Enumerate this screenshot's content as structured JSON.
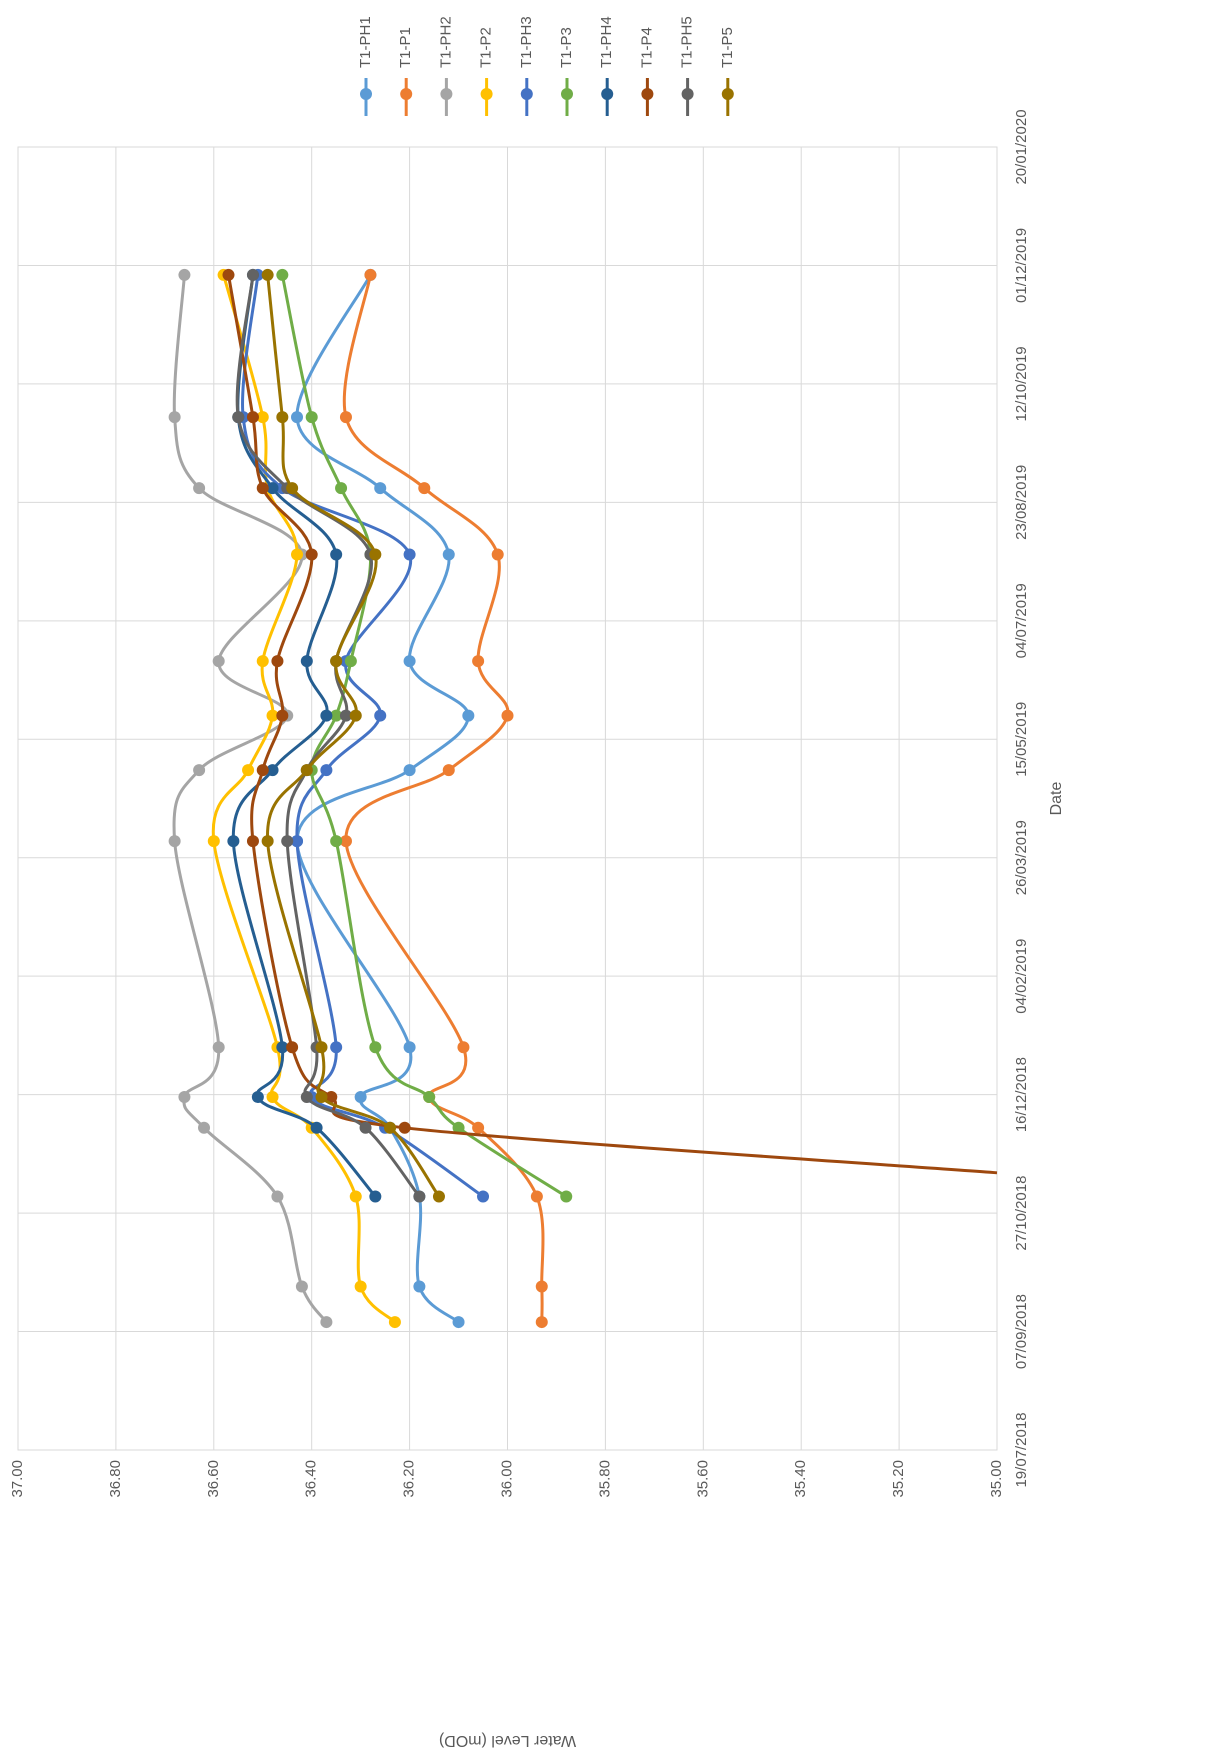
{
  "chart_data": {
    "type": "line",
    "xlabel": "Date",
    "ylabel": "Water Level (mOD)",
    "ylim": [
      35.0,
      37.0
    ],
    "y_ticks": [
      "35.00",
      "35.20",
      "35.40",
      "35.60",
      "35.80",
      "36.00",
      "36.20",
      "36.40",
      "36.60",
      "36.80",
      "37.00"
    ],
    "y_tick_values": [
      35.0,
      35.2,
      35.4,
      35.6,
      35.8,
      36.0,
      36.2,
      36.4,
      36.6,
      36.8,
      37.0
    ],
    "x_ticks": [
      "19/07/2018",
      "07/09/2018",
      "27/10/2018",
      "16/12/2018",
      "04/02/2019",
      "26/03/2019",
      "15/05/2019",
      "04/07/2019",
      "23/08/2019",
      "12/10/2019",
      "01/12/2019",
      "20/01/2020"
    ],
    "x_range": [
      "19/07/2018",
      "20/01/2020"
    ],
    "grid": true,
    "legend_position": "top",
    "orientation": "rotated-90-clockwise",
    "series": [
      {
        "name": "T1-PH1",
        "color": "#5B9BD5",
        "x": [
          "11/09/2018",
          "26/09/2018",
          "03/11/2018",
          "02/12/2018",
          "15/12/2018",
          "05/01/2019",
          "02/04/2019",
          "02/05/2019",
          "25/05/2019",
          "17/06/2019",
          "01/08/2019",
          "29/08/2019",
          "28/09/2019",
          "27/11/2019"
        ],
        "y": [
          36.1,
          36.18,
          36.18,
          36.24,
          36.3,
          36.2,
          36.43,
          36.2,
          36.08,
          36.2,
          36.12,
          36.26,
          36.43,
          36.28
        ]
      },
      {
        "name": "T1-P1",
        "color": "#ED7D31",
        "x": [
          "11/09/2018",
          "26/09/2018",
          "03/11/2018",
          "02/12/2018",
          "15/12/2018",
          "05/01/2019",
          "02/04/2019",
          "02/05/2019",
          "25/05/2019",
          "17/06/2019",
          "01/08/2019",
          "29/08/2019",
          "28/09/2019",
          "27/11/2019"
        ],
        "y": [
          35.93,
          35.93,
          35.94,
          36.06,
          36.16,
          36.09,
          36.33,
          36.12,
          36.0,
          36.06,
          36.02,
          36.17,
          36.33,
          36.28
        ]
      },
      {
        "name": "T1-PH2",
        "color": "#A5A5A5",
        "x": [
          "11/09/2018",
          "26/09/2018",
          "03/11/2018",
          "02/12/2018",
          "15/12/2018",
          "05/01/2019",
          "02/04/2019",
          "02/05/2019",
          "25/05/2019",
          "17/06/2019",
          "01/08/2019",
          "29/08/2019",
          "28/09/2019",
          "27/11/2019"
        ],
        "y": [
          36.37,
          36.42,
          36.47,
          36.62,
          36.66,
          36.59,
          36.68,
          36.63,
          36.45,
          36.59,
          36.42,
          36.63,
          36.68,
          36.66
        ]
      },
      {
        "name": "T1-P2",
        "color": "#FFC000",
        "x": [
          "11/09/2018",
          "26/09/2018",
          "03/11/2018",
          "02/12/2018",
          "15/12/2018",
          "05/01/2019",
          "02/04/2019",
          "02/05/2019",
          "25/05/2019",
          "17/06/2019",
          "01/08/2019",
          "29/08/2019",
          "28/09/2019",
          "27/11/2019"
        ],
        "y": [
          36.23,
          36.3,
          36.31,
          36.4,
          36.48,
          36.47,
          36.6,
          36.53,
          36.48,
          36.5,
          36.43,
          36.49,
          36.5,
          36.58
        ]
      },
      {
        "name": "T1-PH3",
        "color": "#4472C4",
        "x": [
          "03/11/2018",
          "02/12/2018",
          "15/12/2018",
          "05/01/2019",
          "02/04/2019",
          "02/05/2019",
          "25/05/2019",
          "17/06/2019",
          "01/08/2019",
          "29/08/2019",
          "28/09/2019",
          "27/11/2019"
        ],
        "y": [
          36.05,
          36.25,
          36.4,
          36.35,
          36.43,
          36.37,
          36.26,
          36.33,
          36.2,
          36.46,
          36.54,
          36.51
        ]
      },
      {
        "name": "T1-P3",
        "color": "#70AD47",
        "x": [
          "03/11/2018",
          "02/12/2018",
          "15/12/2018",
          "05/01/2019",
          "02/04/2019",
          "02/05/2019",
          "25/05/2019",
          "17/06/2019",
          "01/08/2019",
          "29/08/2019",
          "28/09/2019",
          "27/11/2019"
        ],
        "y": [
          35.88,
          36.1,
          36.16,
          36.27,
          36.35,
          36.4,
          36.35,
          36.32,
          36.28,
          36.34,
          36.4,
          36.46
        ]
      },
      {
        "name": "T1-PH4",
        "color": "#255E91",
        "x": [
          "03/11/2018",
          "02/12/2018",
          "15/12/2018",
          "05/01/2019",
          "02/04/2019",
          "02/05/2019",
          "25/05/2019",
          "17/06/2019",
          "01/08/2019",
          "29/08/2019",
          "28/09/2019",
          "27/11/2019"
        ],
        "y": [
          36.27,
          36.39,
          36.51,
          36.46,
          36.56,
          36.48,
          36.37,
          36.41,
          36.35,
          36.48,
          36.55,
          36.52
        ]
      },
      {
        "name": "T1-P4",
        "color": "#9E480E",
        "x": [
          "13/11/2018",
          "02/12/2018",
          "15/12/2018",
          "05/01/2019",
          "02/04/2019",
          "02/05/2019",
          "25/05/2019",
          "17/06/2019",
          "01/08/2019",
          "29/08/2019",
          "28/09/2019",
          "27/11/2019"
        ],
        "y": [
          35.0,
          36.21,
          36.36,
          36.44,
          36.52,
          36.5,
          36.46,
          36.47,
          36.4,
          36.5,
          36.52,
          36.57
        ]
      },
      {
        "name": "T1-PH5",
        "color": "#636363",
        "x": [
          "03/11/2018",
          "02/12/2018",
          "15/12/2018",
          "05/01/2019",
          "02/04/2019",
          "02/05/2019",
          "25/05/2019",
          "17/06/2019",
          "01/08/2019",
          "29/08/2019",
          "28/09/2019",
          "27/11/2019"
        ],
        "y": [
          36.18,
          36.29,
          36.41,
          36.39,
          36.45,
          36.41,
          36.33,
          36.35,
          36.28,
          36.45,
          36.55,
          36.52
        ]
      },
      {
        "name": "T1-P5",
        "color": "#997300",
        "x": [
          "03/11/2018",
          "02/12/2018",
          "15/12/2018",
          "05/01/2019",
          "02/04/2019",
          "02/05/2019",
          "25/05/2019",
          "17/06/2019",
          "01/08/2019",
          "29/08/2019",
          "28/09/2019",
          "27/11/2019"
        ],
        "y": [
          36.14,
          36.24,
          36.38,
          36.38,
          36.49,
          36.41,
          36.31,
          36.35,
          36.27,
          36.44,
          36.46,
          36.49
        ]
      }
    ]
  }
}
